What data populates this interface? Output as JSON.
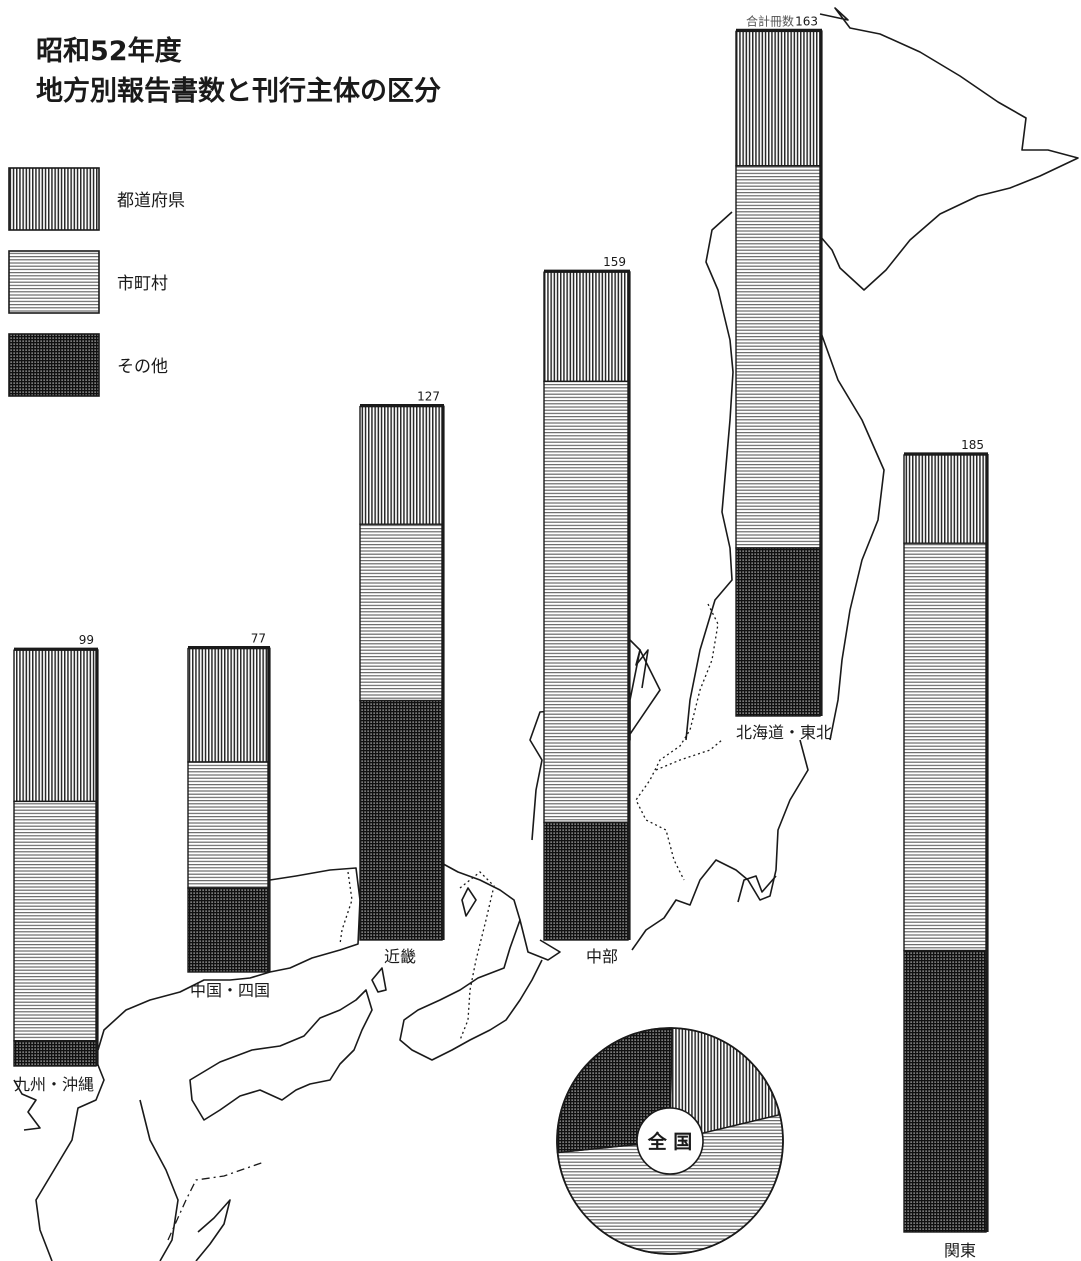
{
  "title": {
    "line1": "昭和52年度",
    "line2": "地方別報告書数と刊行主体の区分"
  },
  "legend": {
    "placement": "top-left",
    "items": [
      {
        "label": "都道府県",
        "pattern": "vertical-hatch"
      },
      {
        "label": "市町村",
        "pattern": "horizontal-hatch"
      },
      {
        "label": "その他",
        "pattern": "cross-hatch"
      }
    ]
  },
  "total_caption": "合計冊数",
  "nationwide_label": "全 国",
  "colors": {
    "ink": "#1a1a1a",
    "paper": "#ffffff"
  },
  "chart_data": [
    {
      "type": "bar",
      "stacked": true,
      "categories": [
        "九州・沖縄",
        "中国・四国",
        "近畿",
        "中部",
        "北海道・東北",
        "関東"
      ],
      "totals": [
        99,
        77,
        127,
        159,
        163,
        185
      ],
      "series": [
        {
          "name": "都道府県",
          "values": [
            36,
            27,
            28,
            26,
            32,
            21
          ]
        },
        {
          "name": "市町村",
          "values": [
            57,
            30,
            42,
            105,
            91,
            97
          ]
        },
        {
          "name": "その他",
          "values": [
            6,
            20,
            57,
            28,
            40,
            67
          ]
        }
      ]
    },
    {
      "type": "pie",
      "title": "全 国",
      "labels": [
        "都道府県",
        "市町村",
        "その他"
      ],
      "values": [
        170,
        422,
        218
      ]
    }
  ]
}
